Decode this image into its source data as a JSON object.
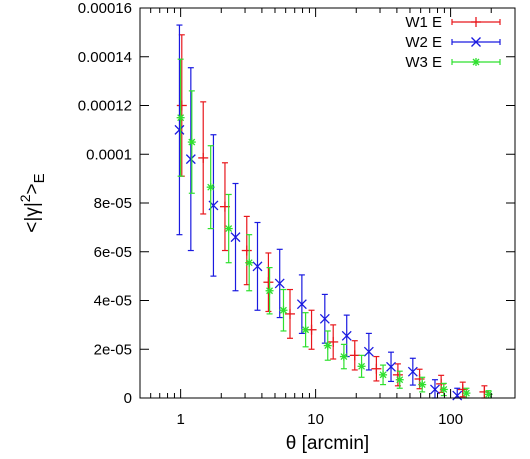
{
  "chart_data": {
    "type": "scatter",
    "xscale": "log",
    "xlim": [
      0.5,
      300
    ],
    "ylim": [
      0,
      0.00016
    ],
    "xlabel": "θ [arcmin]",
    "ylabel": "<|γ|²>_E",
    "x_ticks": [
      {
        "value": 1,
        "label": "1"
      },
      {
        "value": 10,
        "label": "10"
      },
      {
        "value": 100,
        "label": "100"
      }
    ],
    "y_ticks": [
      {
        "value": 0,
        "label": "0"
      },
      {
        "value": 2e-05,
        "label": "2e-05"
      },
      {
        "value": 4e-05,
        "label": "4e-05"
      },
      {
        "value": 6e-05,
        "label": "6e-05"
      },
      {
        "value": 8e-05,
        "label": "8e-05"
      },
      {
        "value": 0.0001,
        "label": "0.0001"
      },
      {
        "value": 0.00012,
        "label": "0.00012"
      },
      {
        "value": 0.00014,
        "label": "0.00014"
      },
      {
        "value": 0.00016,
        "label": "0.00016"
      }
    ],
    "legend_position": "top-right",
    "grid": false,
    "series": [
      {
        "name": "W1 E",
        "color": "#e8171c",
        "marker": "plus",
        "points": [
          {
            "x": 1.02,
            "y": 0.00012,
            "err": 2.9e-05
          },
          {
            "x": 1.47,
            "y": 9.85e-05,
            "err": 2.3e-05
          },
          {
            "x": 2.13,
            "y": 7.85e-05,
            "err": 1.8e-05
          },
          {
            "x": 3.09,
            "y": 6.05e-05,
            "err": 1.4e-05
          },
          {
            "x": 4.47,
            "y": 4.75e-05,
            "err": 1.2e-05
          },
          {
            "x": 6.46,
            "y": 3.45e-05,
            "err": 1e-05
          },
          {
            "x": 9.33,
            "y": 2.8e-05,
            "err": 8e-06
          },
          {
            "x": 13.5,
            "y": 2.3e-05,
            "err": 7e-06
          },
          {
            "x": 19.5,
            "y": 1.75e-05,
            "err": 6e-06
          },
          {
            "x": 28.2,
            "y": 1.2e-05,
            "err": 5e-06
          },
          {
            "x": 40.7,
            "y": 9.5e-06,
            "err": 4.5e-06
          },
          {
            "x": 58.9,
            "y": 7.8e-06,
            "err": 4e-06
          },
          {
            "x": 85.1,
            "y": 5.8e-06,
            "err": 3.5e-06
          },
          {
            "x": 123,
            "y": 3.5e-06,
            "err": 3e-06
          },
          {
            "x": 178,
            "y": 2.5e-06,
            "err": 2.5e-06
          }
        ]
      },
      {
        "name": "W2 E",
        "color": "#1a1ae0",
        "marker": "cross",
        "points": [
          {
            "x": 0.98,
            "y": 0.00011,
            "err": 4.3e-05
          },
          {
            "x": 1.19,
            "y": 9.8e-05,
            "err": 3.75e-05
          },
          {
            "x": 1.75,
            "y": 7.9e-05,
            "err": 2.9e-05
          },
          {
            "x": 2.55,
            "y": 6.6e-05,
            "err": 2.2e-05
          },
          {
            "x": 3.71,
            "y": 5.4e-05,
            "err": 1.8e-05
          },
          {
            "x": 5.42,
            "y": 4.7e-05,
            "err": 1.4e-05
          },
          {
            "x": 7.91,
            "y": 3.85e-05,
            "err": 1.2e-05
          },
          {
            "x": 11.7,
            "y": 3.25e-05,
            "err": 1e-05
          },
          {
            "x": 17.0,
            "y": 2.55e-05,
            "err": 8.5e-06
          },
          {
            "x": 24.8,
            "y": 1.9e-05,
            "err": 7.5e-06
          },
          {
            "x": 36.2,
            "y": 1.28e-05,
            "err": 6e-06
          },
          {
            "x": 52.5,
            "y": 1.08e-05,
            "err": 5.5e-06
          },
          {
            "x": 76.6,
            "y": 3.5e-06,
            "err": 4e-06
          },
          {
            "x": 112,
            "y": 1e-06,
            "err": 3e-06
          }
        ]
      },
      {
        "name": "W3 E",
        "color": "#2ee02e",
        "marker": "star",
        "points": [
          {
            "x": 1.0,
            "y": 0.000115,
            "err": 2.4e-05
          },
          {
            "x": 1.21,
            "y": 0.000105,
            "err": 2.1e-05
          },
          {
            "x": 1.67,
            "y": 8.65e-05,
            "err": 1.7e-05
          },
          {
            "x": 2.27,
            "y": 6.95e-05,
            "err": 1.4e-05
          },
          {
            "x": 3.22,
            "y": 5.55e-05,
            "err": 1.15e-05
          },
          {
            "x": 4.56,
            "y": 4.4e-05,
            "err": 9.5e-06
          },
          {
            "x": 5.78,
            "y": 3.6e-05,
            "err": 8.5e-06
          },
          {
            "x": 8.43,
            "y": 2.8e-05,
            "err": 7e-06
          },
          {
            "x": 12.3,
            "y": 2.15e-05,
            "err": 6e-06
          },
          {
            "x": 16.2,
            "y": 1.7e-05,
            "err": 5e-06
          },
          {
            "x": 21.9,
            "y": 1.3e-05,
            "err": 4.5e-06
          },
          {
            "x": 31.6,
            "y": 9.5e-06,
            "err": 4e-06
          },
          {
            "x": 42.0,
            "y": 7.5e-06,
            "err": 3.5e-06
          },
          {
            "x": 61.6,
            "y": 5.5e-06,
            "err": 3e-06
          },
          {
            "x": 89.1,
            "y": 3.5e-06,
            "err": 2.5e-06
          },
          {
            "x": 131,
            "y": 2e-06,
            "err": 2e-06
          },
          {
            "x": 191,
            "y": 1.5e-06,
            "err": 1.5e-06
          }
        ]
      }
    ]
  }
}
